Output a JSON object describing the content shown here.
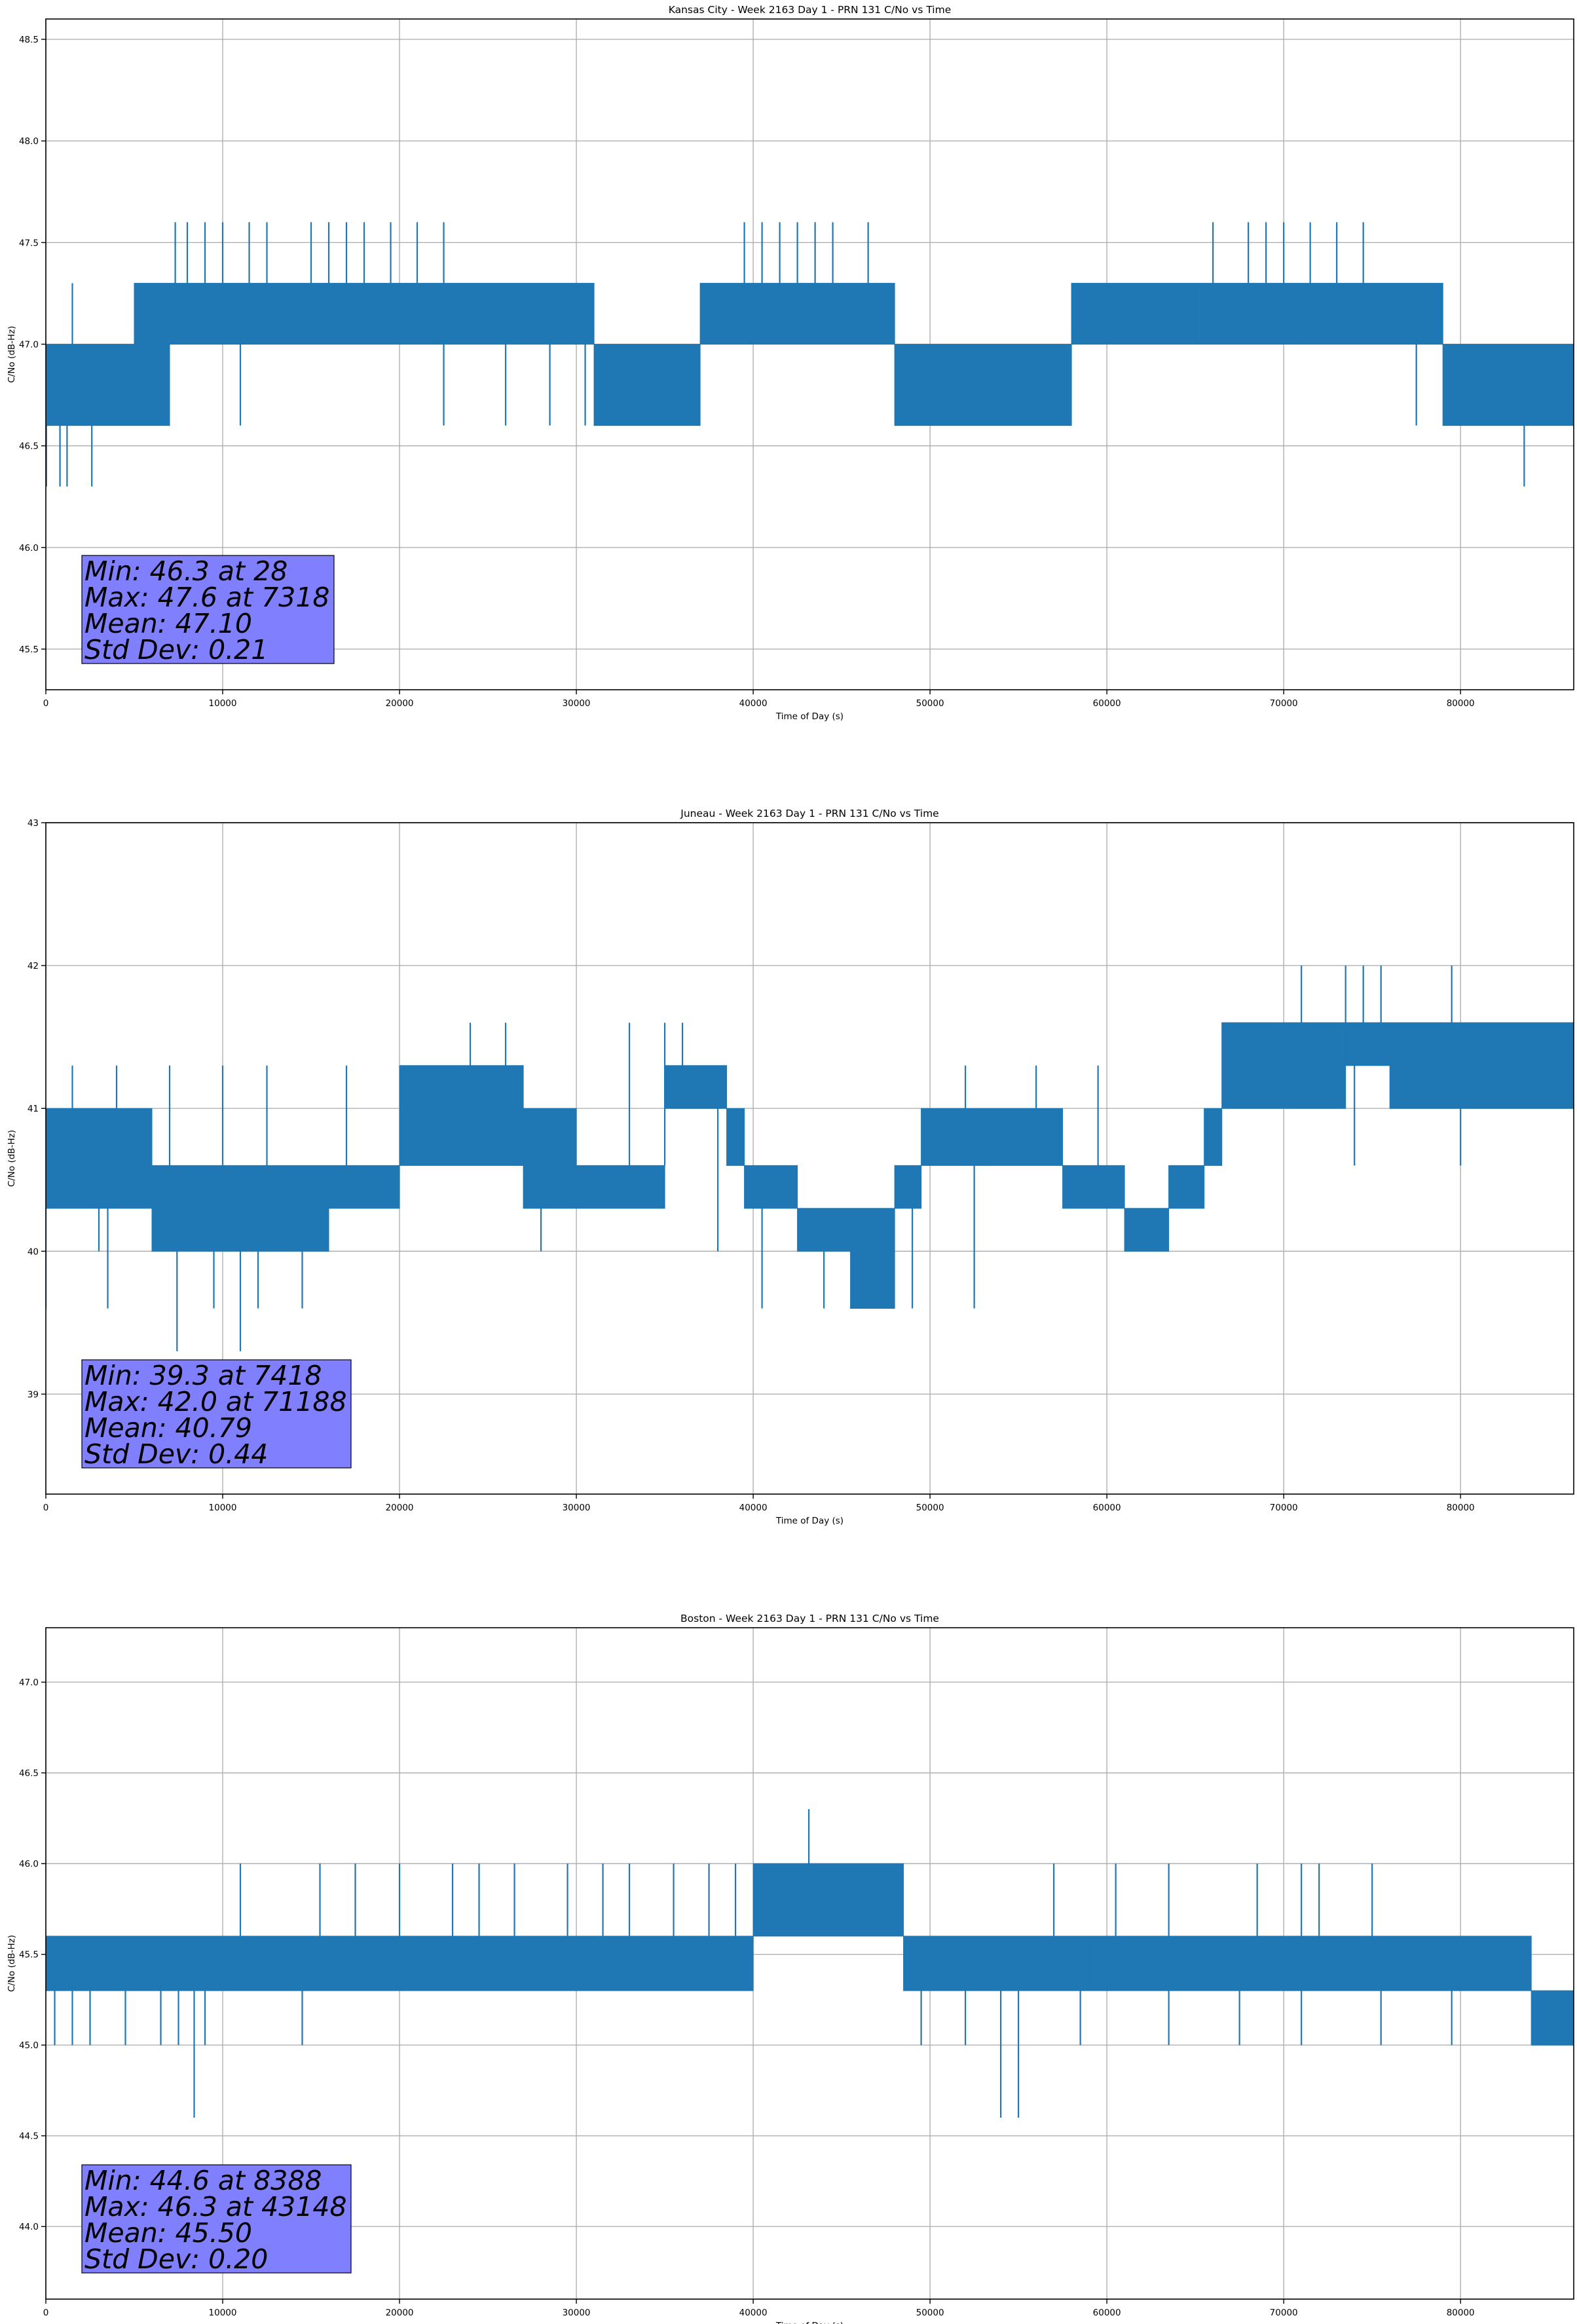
{
  "chart_data": [
    {
      "type": "line",
      "title": "Kansas City - Week 2163 Day 1 - PRN 131 C/No vs Time",
      "xlabel": "Time of Day (s)",
      "ylabel": "C/No (dB-Hz)",
      "xlim": [
        0,
        86400
      ],
      "ylim": [
        45.3,
        48.6
      ],
      "xticks": [
        0,
        10000,
        20000,
        30000,
        40000,
        50000,
        60000,
        70000,
        80000
      ],
      "yticks": [
        45.5,
        46.0,
        46.5,
        47.0,
        47.5,
        48.0,
        48.5
      ],
      "ytick_decimals": 1,
      "grid": true,
      "color": "#1f77b4",
      "stats_box_color": "#8080ff",
      "series": [
        {
          "segments": [
            [
              0,
              7000,
              46.6,
              47.0
            ],
            [
              5000,
              7000,
              46.6,
              47.3
            ],
            [
              7000,
              14500,
              47.0,
              47.3
            ],
            [
              14500,
              22000,
              47.0,
              47.3
            ],
            [
              22000,
              31000,
              47.0,
              47.3
            ],
            [
              31000,
              37000,
              46.6,
              47.0
            ],
            [
              37000,
              48000,
              47.0,
              47.3
            ],
            [
              48000,
              58000,
              46.6,
              47.0
            ],
            [
              58000,
              65000,
              47.0,
              47.3
            ],
            [
              65000,
              71000,
              47.0,
              47.3
            ],
            [
              71000,
              79000,
              47.0,
              47.3
            ],
            [
              79000,
              86400,
              46.6,
              47.0
            ]
          ],
          "spikes_high": [
            [
              1500,
              47.3
            ],
            [
              7318,
              47.6
            ],
            [
              8000,
              47.6
            ],
            [
              9000,
              47.6
            ],
            [
              10000,
              47.6
            ],
            [
              11500,
              47.6
            ],
            [
              12500,
              47.6
            ],
            [
              15000,
              47.6
            ],
            [
              16000,
              47.6
            ],
            [
              17000,
              47.6
            ],
            [
              18000,
              47.6
            ],
            [
              19500,
              47.6
            ],
            [
              21000,
              47.6
            ],
            [
              22500,
              47.6
            ],
            [
              39500,
              47.6
            ],
            [
              40500,
              47.6
            ],
            [
              41500,
              47.6
            ],
            [
              42500,
              47.6
            ],
            [
              43500,
              47.6
            ],
            [
              44500,
              47.6
            ],
            [
              46500,
              47.6
            ],
            [
              66000,
              47.6
            ],
            [
              68000,
              47.6
            ],
            [
              69000,
              47.6
            ],
            [
              70000,
              47.6
            ],
            [
              71500,
              47.6
            ],
            [
              73000,
              47.6
            ],
            [
              74500,
              47.6
            ]
          ],
          "spikes_low": [
            [
              28,
              46.3
            ],
            [
              800,
              46.3
            ],
            [
              1200,
              46.3
            ],
            [
              2600,
              46.3
            ],
            [
              11000,
              46.6
            ],
            [
              22500,
              46.6
            ],
            [
              26000,
              46.6
            ],
            [
              28500,
              46.6
            ],
            [
              30500,
              46.6
            ],
            [
              77500,
              46.6
            ],
            [
              83600,
              46.3
            ]
          ]
        }
      ],
      "stats": [
        "Min: 46.3 at 28",
        "Max: 47.6 at 7318",
        "Mean: 47.10",
        "Std Dev: 0.21"
      ]
    },
    {
      "type": "line",
      "title": "Juneau - Week 2163 Day 1 - PRN 131 C/No vs Time",
      "xlabel": "Time of Day (s)",
      "ylabel": "C/No (dB-Hz)",
      "xlim": [
        0,
        86400
      ],
      "ylim": [
        38.3,
        43.0
      ],
      "xticks": [
        0,
        10000,
        20000,
        30000,
        40000,
        50000,
        60000,
        70000,
        80000
      ],
      "yticks": [
        39,
        40,
        41,
        42,
        43
      ],
      "ytick_decimals": 0,
      "grid": true,
      "color": "#1f77b4",
      "stats_box_color": "#8080ff",
      "series": [
        {
          "segments": [
            [
              0,
              6000,
              40.3,
              41.0
            ],
            [
              6000,
              16000,
              40.0,
              40.6
            ],
            [
              16000,
              20000,
              40.3,
              40.6
            ],
            [
              20000,
              27000,
              40.6,
              41.3
            ],
            [
              27000,
              30000,
              40.3,
              41.0
            ],
            [
              30000,
              35000,
              40.3,
              40.6
            ],
            [
              35000,
              38500,
              41.0,
              41.3
            ],
            [
              38500,
              39500,
              40.6,
              41.0
            ],
            [
              39500,
              42500,
              40.3,
              40.6
            ],
            [
              42500,
              48000,
              40.0,
              40.3
            ],
            [
              45500,
              48000,
              39.6,
              40.0
            ],
            [
              48000,
              49500,
              40.3,
              40.6
            ],
            [
              49500,
              57500,
              40.6,
              41.0
            ],
            [
              57500,
              61000,
              40.3,
              40.6
            ],
            [
              61000,
              63500,
              40.0,
              40.3
            ],
            [
              63500,
              65500,
              40.3,
              40.6
            ],
            [
              65500,
              66500,
              40.6,
              41.0
            ],
            [
              66500,
              73500,
              41.0,
              41.6
            ],
            [
              73500,
              76000,
              41.3,
              41.6
            ],
            [
              76000,
              86400,
              41.0,
              41.6
            ]
          ],
          "spikes_high": [
            [
              1500,
              41.3
            ],
            [
              4000,
              41.3
            ],
            [
              7000,
              41.3
            ],
            [
              10000,
              41.3
            ],
            [
              12500,
              41.3
            ],
            [
              17000,
              41.3
            ],
            [
              21000,
              41.3
            ],
            [
              24000,
              41.6
            ],
            [
              26000,
              41.6
            ],
            [
              33000,
              41.6
            ],
            [
              35000,
              41.6
            ],
            [
              36000,
              41.6
            ],
            [
              52000,
              41.3
            ],
            [
              56000,
              41.3
            ],
            [
              59500,
              41.3
            ],
            [
              71000,
              42.0
            ],
            [
              73500,
              42.0
            ],
            [
              74500,
              42.0
            ],
            [
              75500,
              42.0
            ],
            [
              79500,
              42.0
            ]
          ],
          "spikes_low": [
            [
              0,
              39.6
            ],
            [
              3000,
              40.0
            ],
            [
              3500,
              39.6
            ],
            [
              7418,
              39.3
            ],
            [
              9500,
              39.6
            ],
            [
              11000,
              39.3
            ],
            [
              12000,
              39.6
            ],
            [
              14500,
              39.6
            ],
            [
              28000,
              40.0
            ],
            [
              38000,
              40.0
            ],
            [
              40500,
              39.6
            ],
            [
              44000,
              39.6
            ],
            [
              49000,
              39.6
            ],
            [
              52500,
              39.6
            ],
            [
              74000,
              40.6
            ],
            [
              80000,
              40.6
            ]
          ]
        }
      ],
      "stats": [
        "Min: 39.3 at 7418",
        "Max: 42.0 at 71188",
        "Mean: 40.79",
        "Std Dev: 0.44"
      ]
    },
    {
      "type": "line",
      "title": "Boston - Week 2163 Day 1 - PRN 131 C/No vs Time",
      "xlabel": "Time of Day (s)",
      "ylabel": "C/No (dB-Hz)",
      "xlim": [
        0,
        86400
      ],
      "ylim": [
        43.6,
        47.3
      ],
      "xticks": [
        0,
        10000,
        20000,
        30000,
        40000,
        50000,
        60000,
        70000,
        80000
      ],
      "yticks": [
        44.0,
        44.5,
        45.0,
        45.5,
        46.0,
        46.5,
        47.0
      ],
      "ytick_decimals": 1,
      "grid": true,
      "color": "#1f77b4",
      "stats_box_color": "#8080ff",
      "series": [
        {
          "segments": [
            [
              0,
              12000,
              45.3,
              45.6
            ],
            [
              12000,
              29000,
              45.3,
              45.6
            ],
            [
              29000,
              40000,
              45.3,
              45.6
            ],
            [
              40000,
              48500,
              45.6,
              46.0
            ],
            [
              48500,
              59000,
              45.3,
              45.6
            ],
            [
              59000,
              72000,
              45.3,
              45.6
            ],
            [
              72000,
              84000,
              45.3,
              45.6
            ],
            [
              84000,
              86400,
              45.0,
              45.3
            ]
          ],
          "spikes_high": [
            [
              11000,
              46.0
            ],
            [
              15500,
              46.0
            ],
            [
              17500,
              46.0
            ],
            [
              20000,
              46.0
            ],
            [
              23000,
              46.0
            ],
            [
              24500,
              46.0
            ],
            [
              26500,
              46.0
            ],
            [
              29500,
              46.0
            ],
            [
              31500,
              46.0
            ],
            [
              33000,
              46.0
            ],
            [
              35500,
              46.0
            ],
            [
              37500,
              46.0
            ],
            [
              39000,
              46.0
            ],
            [
              43148,
              46.3
            ],
            [
              57000,
              46.0
            ],
            [
              60500,
              46.0
            ],
            [
              63500,
              46.0
            ],
            [
              68500,
              46.0
            ],
            [
              71000,
              46.0
            ],
            [
              72000,
              46.0
            ],
            [
              75000,
              46.0
            ]
          ],
          "spikes_low": [
            [
              500,
              45.0
            ],
            [
              1500,
              45.0
            ],
            [
              2500,
              45.0
            ],
            [
              4500,
              45.0
            ],
            [
              6500,
              45.0
            ],
            [
              7500,
              45.0
            ],
            [
              8388,
              44.6
            ],
            [
              9000,
              45.0
            ],
            [
              14500,
              45.0
            ],
            [
              49500,
              45.0
            ],
            [
              52000,
              45.0
            ],
            [
              54000,
              44.6
            ],
            [
              55000,
              44.6
            ],
            [
              58500,
              45.0
            ],
            [
              63500,
              45.0
            ],
            [
              67500,
              45.0
            ],
            [
              71000,
              45.0
            ],
            [
              75500,
              45.0
            ],
            [
              79500,
              45.0
            ]
          ]
        }
      ],
      "stats": [
        "Min: 44.6 at 8388",
        "Max: 46.3 at 43148",
        "Mean: 45.50",
        "Std Dev: 0.20"
      ]
    }
  ]
}
